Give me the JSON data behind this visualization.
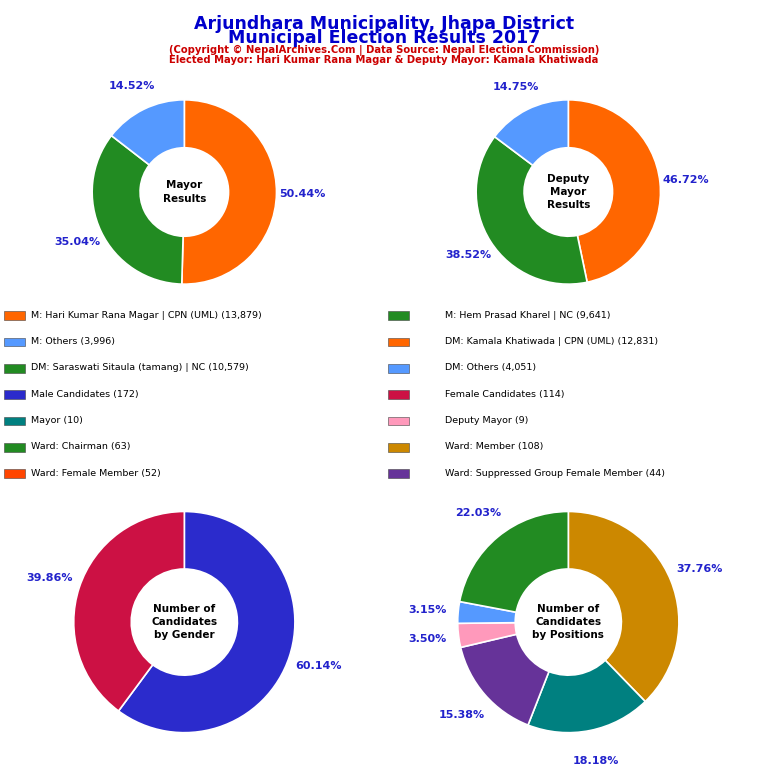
{
  "title_line1": "Arjundhara Municipality, Jhapa District",
  "title_line2": "Municipal Election Results 2017",
  "subtitle1": "(Copyright © NepalArchives.Com | Data Source: Nepal Election Commission)",
  "subtitle2": "Elected Mayor: Hari Kumar Rana Magar & Deputy Mayor: Kamala Khatiwada",
  "title_color": "#0000cc",
  "subtitle_color": "#cc0000",
  "mayor_slices": [
    50.44,
    35.04,
    14.52
  ],
  "mayor_colors": [
    "#ff6600",
    "#228B22",
    "#5599ff"
  ],
  "mayor_pcts": [
    "50.44%",
    "35.04%",
    "14.52%"
  ],
  "mayor_center_text": "Mayor\nResults",
  "deputy_slices": [
    46.72,
    38.52,
    14.75
  ],
  "deputy_colors": [
    "#ff6600",
    "#228B22",
    "#5599ff"
  ],
  "deputy_pcts": [
    "46.72%",
    "38.52%",
    "14.75%"
  ],
  "deputy_center_text": "Deputy\nMayor\nResults",
  "gender_slices": [
    60.14,
    39.86
  ],
  "gender_colors": [
    "#2b2bcc",
    "#cc1144"
  ],
  "gender_pcts": [
    "60.14%",
    "39.86%"
  ],
  "gender_center_text": "Number of\nCandidates\nby Gender",
  "positions_slices": [
    37.76,
    18.18,
    15.38,
    3.5,
    3.15,
    22.03
  ],
  "positions_colors": [
    "#cc8800",
    "#008080",
    "#663399",
    "#ff99bb",
    "#5599ff",
    "#228B22"
  ],
  "positions_pcts": [
    "37.76%",
    "18.18%",
    "15.38%",
    "3.50%",
    "3.15%",
    "22.03%"
  ],
  "positions_center_text": "Number of\nCandidates\nby Positions",
  "legend_items_left": [
    {
      "label": "M: Hari Kumar Rana Magar | CPN (UML) (13,879)",
      "color": "#ff6600"
    },
    {
      "label": "M: Others (3,996)",
      "color": "#5599ff"
    },
    {
      "label": "DM: Saraswati Sitaula (tamang) | NC (10,579)",
      "color": "#228B22"
    },
    {
      "label": "Male Candidates (172)",
      "color": "#2b2bcc"
    },
    {
      "label": "Mayor (10)",
      "color": "#008080"
    },
    {
      "label": "Ward: Chairman (63)",
      "color": "#228B22"
    },
    {
      "label": "Ward: Female Member (52)",
      "color": "#ff4500"
    }
  ],
  "legend_items_right": [
    {
      "label": "M: Hem Prasad Kharel | NC (9,641)",
      "color": "#228B22"
    },
    {
      "label": "DM: Kamala Khatiwada | CPN (UML) (12,831)",
      "color": "#ff6600"
    },
    {
      "label": "DM: Others (4,051)",
      "color": "#5599ff"
    },
    {
      "label": "Female Candidates (114)",
      "color": "#cc1144"
    },
    {
      "label": "Deputy Mayor (9)",
      "color": "#ff99bb"
    },
    {
      "label": "Ward: Member (108)",
      "color": "#cc8800"
    },
    {
      "label": "Ward: Suppressed Group Female Member (44)",
      "color": "#663399"
    }
  ]
}
